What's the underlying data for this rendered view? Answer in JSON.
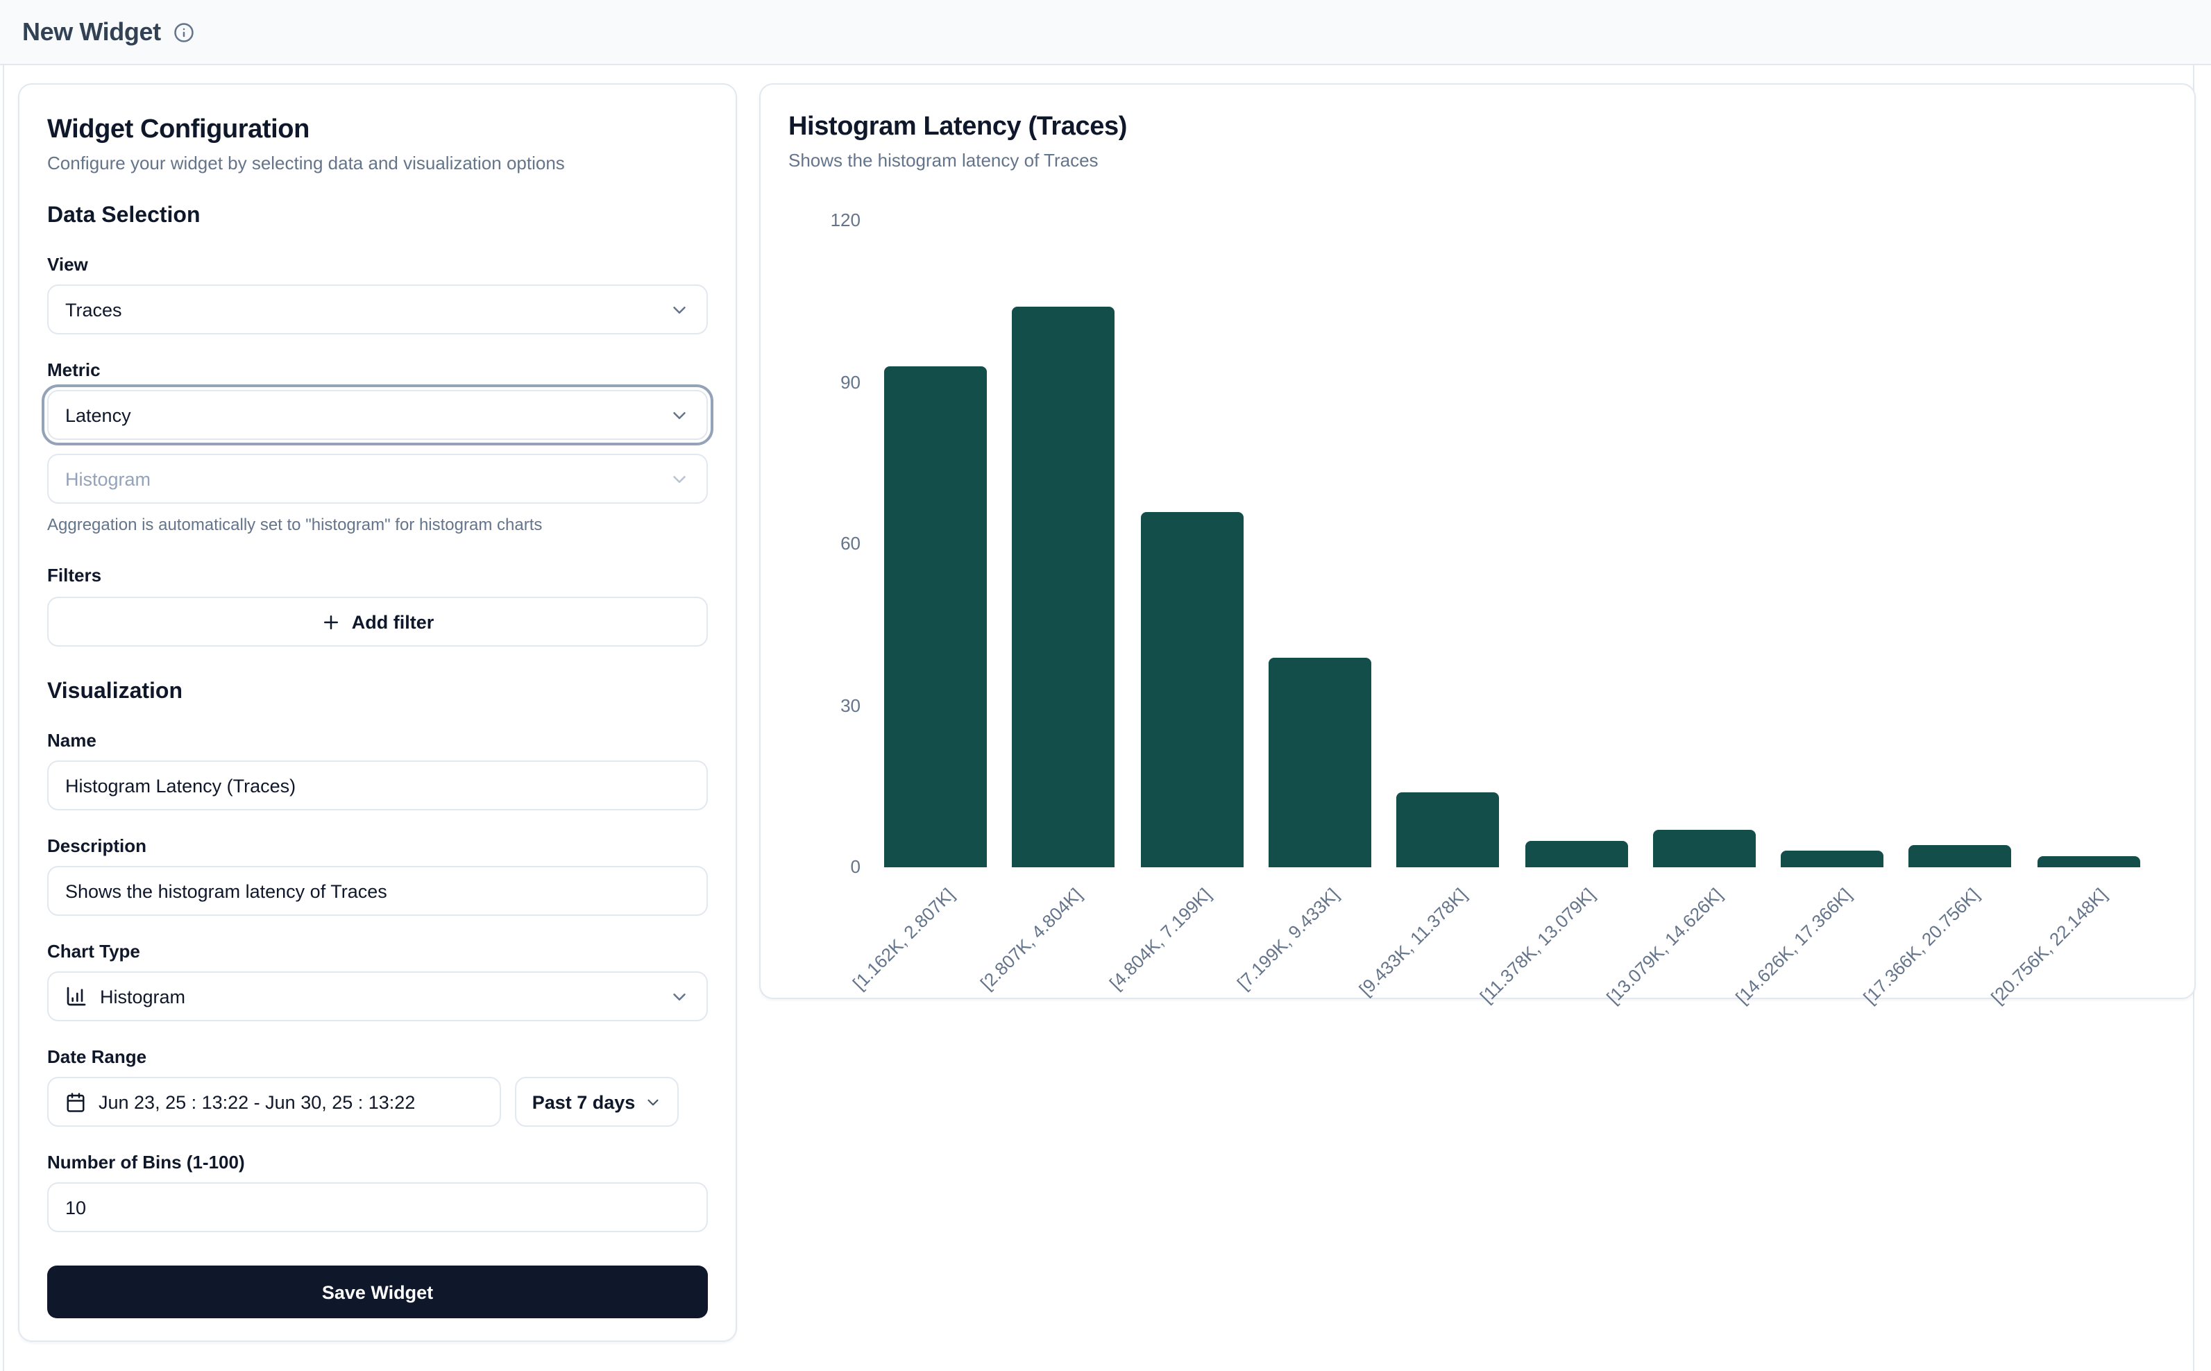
{
  "header": {
    "title": "New Widget"
  },
  "config": {
    "title": "Widget Configuration",
    "subtitle": "Configure your widget by selecting data and visualization options",
    "data_selection": {
      "heading": "Data Selection",
      "view": {
        "label": "View",
        "value": "Traces"
      },
      "metric": {
        "label": "Metric",
        "value": "Latency"
      },
      "aggregation": {
        "value": "Histogram",
        "disabled": true
      },
      "aggregation_note": "Aggregation is automatically set to \"histogram\" for histogram charts",
      "filters": {
        "label": "Filters",
        "add_label": "Add filter"
      }
    },
    "visualization": {
      "heading": "Visualization",
      "name": {
        "label": "Name",
        "value": "Histogram Latency (Traces)"
      },
      "description": {
        "label": "Description",
        "value": "Shows the histogram latency of Traces"
      },
      "chart_type": {
        "label": "Chart Type",
        "value": "Histogram"
      },
      "date_range": {
        "label": "Date Range",
        "value": "Jun 23, 25 : 13:22 - Jun 30, 25 : 13:22",
        "preset": "Past 7 days"
      },
      "bins": {
        "label": "Number of Bins (1-100)",
        "value": "10"
      }
    },
    "save_label": "Save Widget"
  },
  "chart_panel": {
    "title": "Histogram Latency (Traces)",
    "subtitle": "Shows the histogram latency of Traces"
  },
  "chart_data": {
    "type": "bar",
    "title": "Histogram Latency (Traces)",
    "subtitle": "Shows the histogram latency of Traces",
    "categories": [
      "[1.162K, 2.807K]",
      "[2.807K, 4.804K]",
      "[4.804K, 7.199K]",
      "[7.199K, 9.433K]",
      "[9.433K, 11.378K]",
      "[11.378K, 13.079K]",
      "[13.079K, 14.626K]",
      "[14.626K, 17.366K]",
      "[17.366K, 20.756K]",
      "[20.756K, 22.148K]"
    ],
    "values": [
      93,
      104,
      66,
      39,
      14,
      5,
      7,
      3,
      4,
      2
    ],
    "xlabel": "",
    "ylabel": "",
    "ylim": [
      0,
      120
    ],
    "yticks": [
      0,
      30,
      60,
      90,
      120
    ],
    "grid": false,
    "legend": "none",
    "bar_color": "#134e4a",
    "tick_color": "#64748b",
    "label_rotation": -45
  },
  "colors": {
    "header_bg": "#f8fafc",
    "border": "#e2e8f0",
    "text_dark": "#0f172a",
    "text_muted": "#64748b",
    "bar": "#134e4a",
    "save_button_bg": "#0f172a",
    "focus_ring": "#94a3b8"
  }
}
